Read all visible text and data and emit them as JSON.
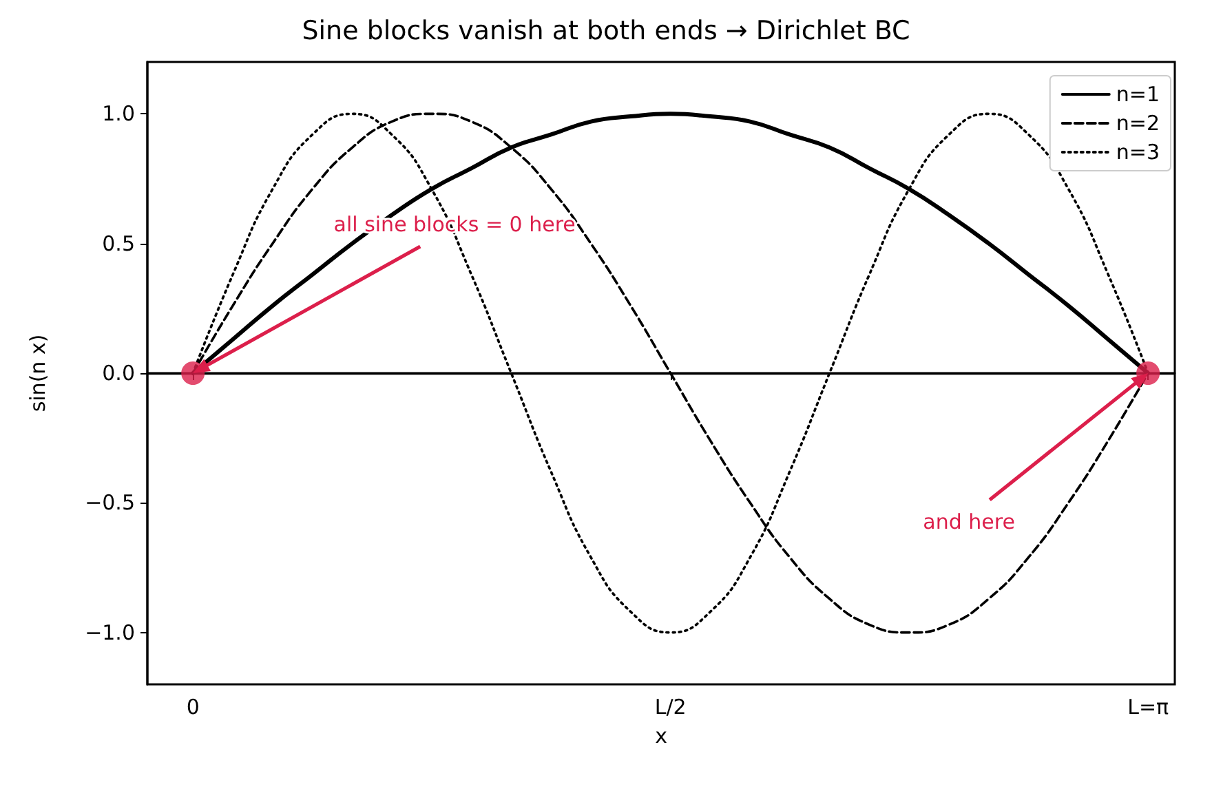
{
  "chart_data": {
    "type": "line",
    "title": "Sine blocks vanish at both ends → Dirichlet BC",
    "xlabel": "x",
    "ylabel": "sin(n x)",
    "x": [
      0,
      0.131,
      0.262,
      0.393,
      0.524,
      0.654,
      0.785,
      0.916,
      1.047,
      1.178,
      1.309,
      1.44,
      1.571,
      1.702,
      1.833,
      1.963,
      2.094,
      2.225,
      2.356,
      2.487,
      2.618,
      2.749,
      2.88,
      3.011,
      3.142
    ],
    "series": [
      {
        "name": "n=1",
        "color": "#000000",
        "line_style": "solid",
        "values": [
          0,
          0.13,
          0.26,
          0.38,
          0.5,
          0.61,
          0.71,
          0.79,
          0.87,
          0.92,
          0.97,
          0.99,
          1,
          0.99,
          0.97,
          0.92,
          0.87,
          0.79,
          0.71,
          0.61,
          0.5,
          0.38,
          0.26,
          0.13,
          0
        ]
      },
      {
        "name": "n=2",
        "color": "#000000",
        "line_style": "dashed",
        "values": [
          0,
          0.26,
          0.5,
          0.71,
          0.87,
          0.97,
          1,
          0.97,
          0.87,
          0.71,
          0.5,
          0.26,
          0,
          -0.26,
          -0.5,
          -0.71,
          -0.87,
          -0.97,
          -1,
          -0.97,
          -0.87,
          -0.71,
          -0.5,
          -0.26,
          0
        ]
      },
      {
        "name": "n=3",
        "color": "#000000",
        "line_style": "dotted",
        "values": [
          0,
          0.38,
          0.71,
          0.92,
          1,
          0.92,
          0.71,
          0.38,
          0,
          -0.38,
          -0.71,
          -0.92,
          -1,
          -0.92,
          -0.71,
          -0.38,
          0,
          0.38,
          0.71,
          0.92,
          1,
          0.92,
          0.71,
          0.38,
          0
        ]
      },
      {
        "type": "scatter",
        "color": "#dc1f4b",
        "marker": "circle",
        "x": [
          0,
          3.142
        ],
        "values": [
          0,
          0
        ]
      }
    ],
    "xlim": [
      -0.15,
      3.23
    ],
    "xticks": [
      {
        "value": 0,
        "label": "0"
      },
      {
        "value": 1.571,
        "label": "L/2"
      },
      {
        "value": 3.142,
        "label": "L=π"
      }
    ],
    "ylim": [
      -1.2,
      1.2
    ],
    "yticks": [
      {
        "value": -1,
        "label": "−1.0"
      },
      {
        "value": -0.5,
        "label": "−0.5"
      },
      {
        "value": 0,
        "label": "0.0"
      },
      {
        "value": 0.5,
        "label": "0.5"
      },
      {
        "value": 1,
        "label": "1.0"
      }
    ],
    "ref_lines": [
      {
        "axis": "y",
        "value": 0,
        "color": "#000000"
      }
    ],
    "annotations": [
      "all sine blocks = 0 here",
      "and here"
    ],
    "legend": "top right",
    "grid": false
  }
}
